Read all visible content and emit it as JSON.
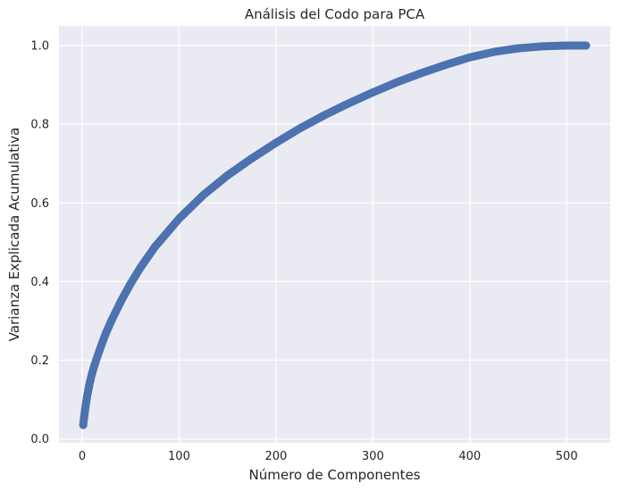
{
  "chart_data": {
    "type": "line",
    "title": "Análisis del Codo para PCA",
    "xlabel": "Número de Componentes",
    "ylabel": "Varianza Explicada Acumulativa",
    "xlim": [
      -24,
      545
    ],
    "ylim": [
      -0.01,
      1.05
    ],
    "xticks": [
      0,
      100,
      200,
      300,
      400,
      500
    ],
    "yticks": [
      0.0,
      0.2,
      0.4,
      0.6,
      0.8,
      1.0
    ],
    "xtick_labels": [
      "0",
      "100",
      "200",
      "300",
      "400",
      "500"
    ],
    "ytick_labels": [
      "0.0",
      "0.2",
      "0.4",
      "0.6",
      "0.8",
      "1.0"
    ],
    "grid": true,
    "marker": "circle",
    "colors": {
      "series": "#4c72b0",
      "plot_bg": "#eaeaf2",
      "grid": "#ffffff"
    },
    "series": [
      {
        "x": [
          1,
          2,
          3,
          4,
          5,
          6,
          7,
          8,
          10,
          12,
          15,
          20,
          25,
          30,
          40,
          50,
          60,
          75,
          100,
          125,
          150,
          175,
          200,
          225,
          250,
          275,
          300,
          325,
          350,
          375,
          400,
          425,
          450,
          475,
          500,
          520
        ],
        "values": [
          0.035,
          0.055,
          0.075,
          0.092,
          0.108,
          0.12,
          0.133,
          0.145,
          0.165,
          0.182,
          0.205,
          0.24,
          0.272,
          0.3,
          0.35,
          0.395,
          0.435,
          0.488,
          0.56,
          0.62,
          0.67,
          0.713,
          0.753,
          0.79,
          0.823,
          0.853,
          0.881,
          0.907,
          0.93,
          0.951,
          0.97,
          0.984,
          0.993,
          0.998,
          1.0,
          1.0
        ]
      }
    ]
  }
}
